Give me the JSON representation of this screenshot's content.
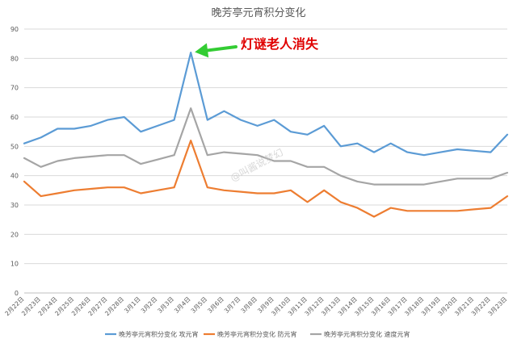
{
  "chart_data": {
    "type": "line",
    "title": "晚芳亭元宵积分变化",
    "ylim": [
      0,
      90
    ],
    "yticks": [
      0,
      10,
      20,
      30,
      40,
      50,
      60,
      70,
      80,
      90
    ],
    "grid": "horizontal",
    "legend_position": "bottom",
    "categories": [
      "2月22日",
      "2月23日",
      "2月24日",
      "2月25日",
      "2月26日",
      "2月27日",
      "2月28日",
      "3月1日",
      "3月2日",
      "3月3日",
      "3月4日",
      "3月5日",
      "3月6日",
      "3月7日",
      "3月8日",
      "3月9日",
      "3月10日",
      "3月11日",
      "3月12日",
      "3月13日",
      "3月14日",
      "3月15日",
      "3月16日",
      "3月17日",
      "3月18日",
      "3月19日",
      "3月20日",
      "3月21日",
      "3月22日",
      "3月23日"
    ],
    "series": [
      {
        "name": "晚芳亭元宵积分变化 攻元宵",
        "color": "#5b9bd5",
        "values": [
          51,
          53,
          56,
          56,
          57,
          59,
          60,
          55,
          57,
          59,
          82,
          59,
          62,
          59,
          57,
          59,
          55,
          54,
          57,
          50,
          51,
          48,
          51,
          48,
          47,
          48,
          49,
          48.5,
          48,
          54
        ]
      },
      {
        "name": "晚芳亭元宵积分变化 防元宵",
        "color": "#ed7d31",
        "values": [
          38,
          33,
          34,
          35,
          35.5,
          36,
          36,
          34,
          35,
          36,
          52,
          36,
          35,
          34.5,
          34,
          34,
          35,
          31,
          35,
          31,
          29,
          26,
          29,
          28,
          28,
          28,
          28,
          28.5,
          29,
          33
        ]
      },
      {
        "name": "晚芳亭元宵积分变化 速度元宵",
        "color": "#a5a5a5",
        "values": [
          46,
          43,
          45,
          46,
          46.5,
          47,
          47,
          44,
          45.5,
          47,
          63,
          47,
          48,
          47.5,
          47,
          45,
          45,
          43,
          43,
          40,
          38,
          37,
          37,
          37,
          37,
          38,
          39,
          39,
          39,
          41
        ]
      }
    ],
    "annotation": {
      "text": "灯谜老人消失",
      "target_category": "3月4日",
      "target_series": 0,
      "arrow_color": "#33cc33"
    },
    "watermark": "@叫酱说梦幻"
  }
}
